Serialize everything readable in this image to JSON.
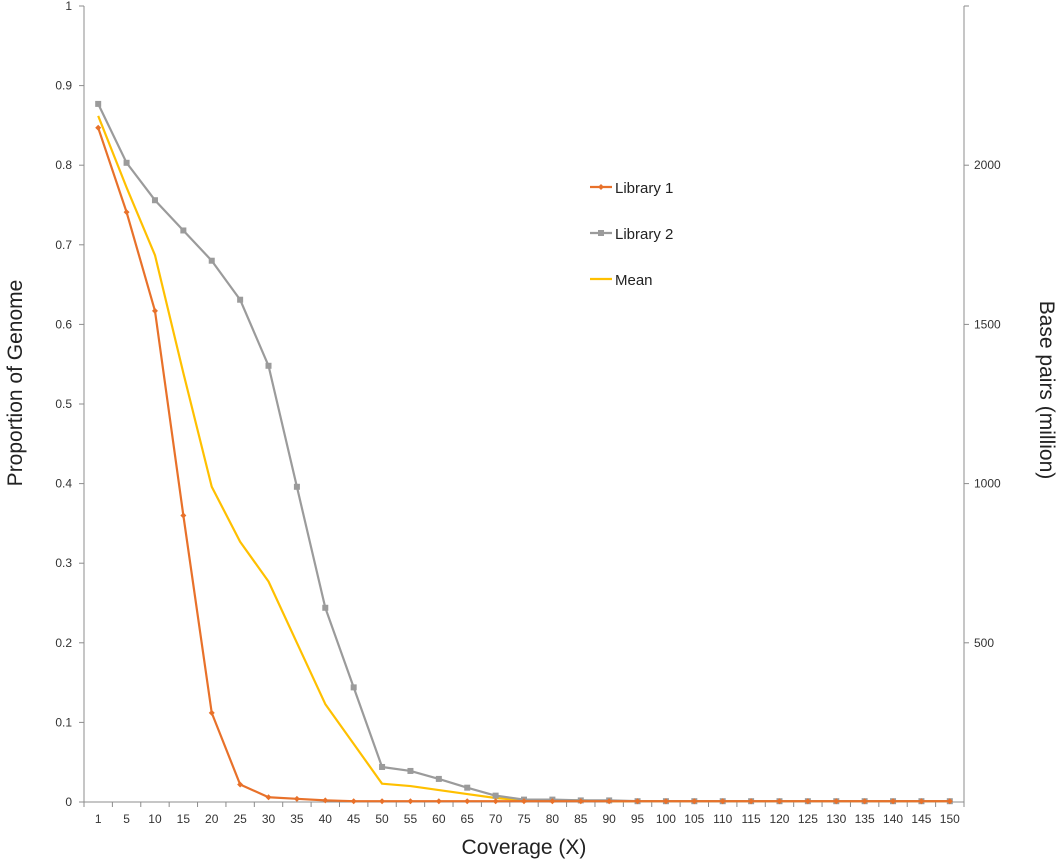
{
  "chart_data": {
    "type": "line",
    "title": "",
    "xlabel": "Coverage (X)",
    "ylabel": "Proportion of Genome",
    "y2label": "Base pairs (million)",
    "x": [
      1,
      5,
      10,
      15,
      20,
      25,
      30,
      35,
      40,
      45,
      50,
      55,
      60,
      65,
      70,
      75,
      80,
      85,
      90,
      95,
      100,
      105,
      110,
      115,
      120,
      125,
      130,
      135,
      140,
      145,
      150
    ],
    "ylim": [
      0,
      1
    ],
    "yticks": [
      "0",
      "0.1",
      "0.2",
      "0.3",
      "0.4",
      "0.5",
      "0.6",
      "0.7",
      "0.8",
      "0.9",
      "1"
    ],
    "y2lim": [
      0,
      2500
    ],
    "y2ticks": [
      "500",
      "1000",
      "1500",
      "2000"
    ],
    "grid": false,
    "legend_position": "top-center",
    "series": [
      {
        "name": "Library 1",
        "color": "#E8712A",
        "marker": "diamond",
        "values": [
          0.847,
          0.741,
          0.617,
          0.36,
          0.112,
          0.022,
          0.006,
          0.004,
          0.002,
          0.001,
          0.001,
          0.001,
          0.001,
          0.001,
          0.001,
          0.001,
          0.001,
          0.001,
          0.001,
          0.001,
          0.001,
          0.001,
          0.001,
          0.001,
          0.001,
          0.001,
          0.001,
          0.001,
          0.001,
          0.001,
          0.001
        ]
      },
      {
        "name": "Library 2",
        "color": "#9B9B9B",
        "marker": "square",
        "values": [
          0.877,
          0.803,
          0.756,
          0.718,
          0.68,
          0.631,
          0.548,
          0.396,
          0.244,
          0.144,
          0.044,
          0.039,
          0.029,
          0.018,
          0.008,
          0.003,
          0.003,
          0.002,
          0.002,
          0.001,
          0.001,
          0.001,
          0.001,
          0.001,
          0.001,
          0.001,
          0.001,
          0.001,
          0.001,
          0.001,
          0.001
        ]
      },
      {
        "name": "Mean",
        "color": "#FFC000",
        "marker": "none",
        "values": [
          0.862,
          0.772,
          0.687,
          0.539,
          0.396,
          0.327,
          0.277,
          0.2,
          0.123,
          0.073,
          0.023,
          0.02,
          0.015,
          0.01,
          0.005,
          0.002,
          0.002,
          0.002,
          0.001,
          0.001,
          0.001,
          0.001,
          0.001,
          0.001,
          0.001,
          0.001,
          0.001,
          0.001,
          0.001,
          0.001,
          0.001
        ]
      }
    ]
  }
}
